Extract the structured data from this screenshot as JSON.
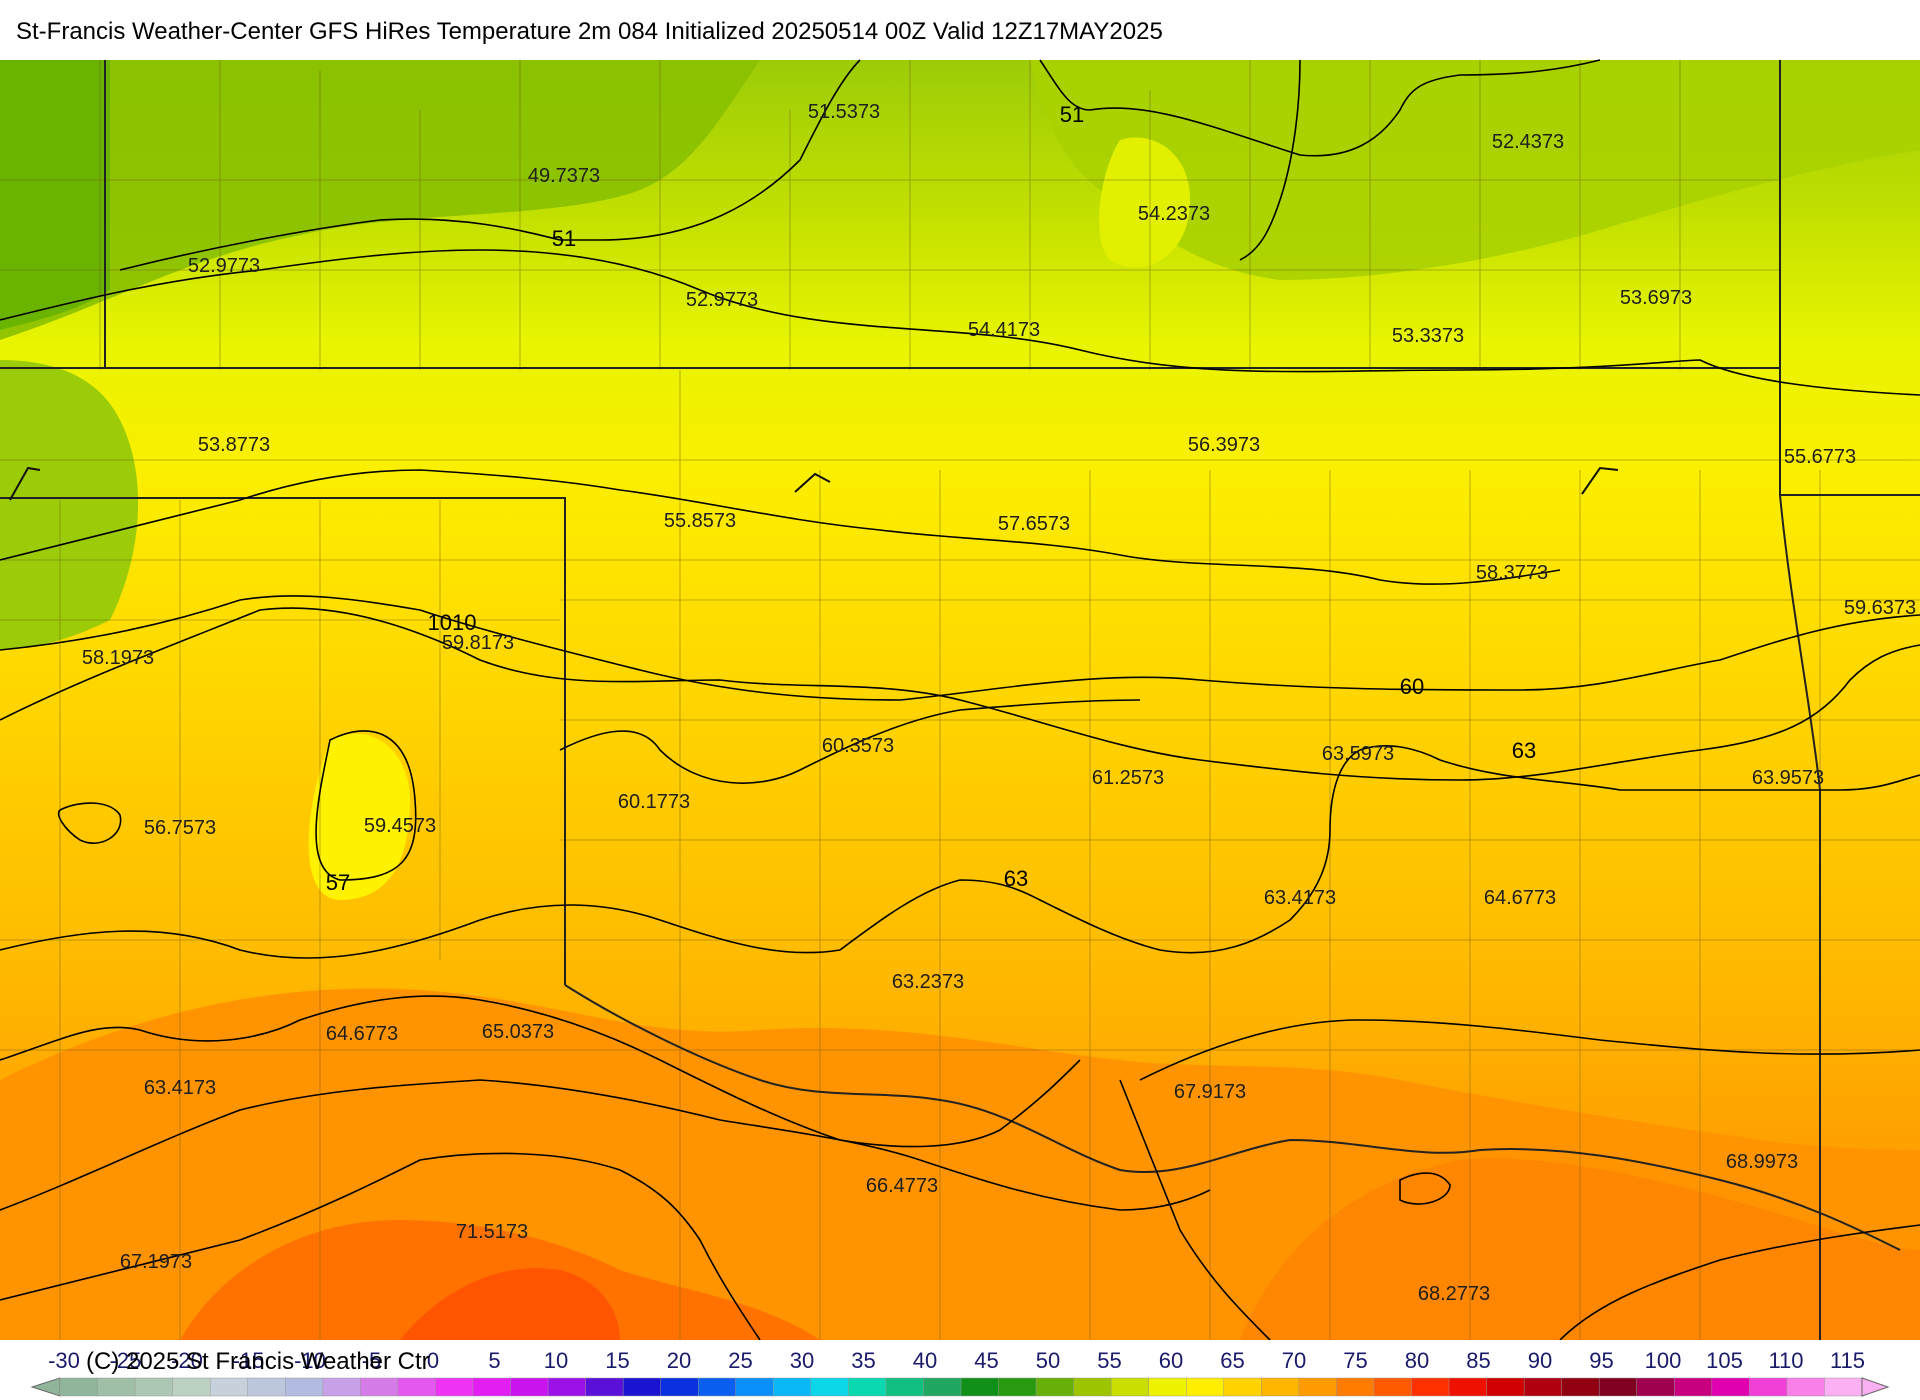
{
  "title": "St-Francis Weather-Center GFS HiRes Temperature 2m  084 Initialized 20250514 00Z Valid 12Z17MAY2025",
  "copyright": "(C) 2025 St Francis Weather Ctr",
  "point_values": [
    "51.5373",
    "49.7373",
    "52.9773",
    "52.9773",
    "54.4173",
    "54.2373",
    "52.4373",
    "53.6973",
    "53.3373",
    "53.8773",
    "56.3973",
    "55.6773",
    "55.8573",
    "57.6573",
    "58.3773",
    "58.1973",
    "59.8173",
    "59.6373",
    "60.3573",
    "61.2573",
    "63.5973",
    "63.9573",
    "60.1773",
    "56.7573",
    "59.4573",
    "64.6773",
    "63.4173",
    "63.2373",
    "64.6773",
    "65.0373",
    "63.4173",
    "67.9173",
    "68.9973",
    "66.4773",
    "71.5173",
    "67.1973",
    "68.2773"
  ],
  "contour_labels": [
    "51",
    "51",
    "1010",
    "60",
    "63",
    "63",
    "57"
  ],
  "legend": {
    "ticks": [
      "-30",
      "-25",
      "-20",
      "-15",
      "-10",
      "-5",
      "0",
      "5",
      "10",
      "15",
      "20",
      "25",
      "30",
      "35",
      "40",
      "45",
      "50",
      "55",
      "60",
      "65",
      "70",
      "75",
      "80",
      "85",
      "90",
      "95",
      "100",
      "105",
      "110",
      "115"
    ],
    "colors": [
      "#8fb59a",
      "#9fbfa6",
      "#acc8b4",
      "#bcd1c2",
      "#c7d1dc",
      "#bcc6dc",
      "#b2bce0",
      "#c7a0e8",
      "#d67ce8",
      "#e558ef",
      "#f034f5",
      "#e21ef2",
      "#c914ef",
      "#9b10e6",
      "#5a10d8",
      "#1a14d0",
      "#0a30e0",
      "#0a5ef0",
      "#0a90f8",
      "#0ab8f8",
      "#0ad6e8",
      "#0ad8b0",
      "#10c080",
      "#20a860",
      "#109018",
      "#289a10",
      "#68b008",
      "#9cc400",
      "#cade00",
      "#eef200",
      "#ffee00",
      "#ffd200",
      "#ffb600",
      "#ff9a00",
      "#ff7c00",
      "#ff5a00",
      "#ff3000",
      "#f01000",
      "#d00000",
      "#b00010",
      "#900010",
      "#800020",
      "#a00050",
      "#c80080",
      "#e000b0",
      "#f040d8",
      "#f880e8",
      "#fcb0f4"
    ]
  },
  "colors": {
    "contour": "#000000",
    "county": "#6a5a20",
    "state": "#222222"
  }
}
